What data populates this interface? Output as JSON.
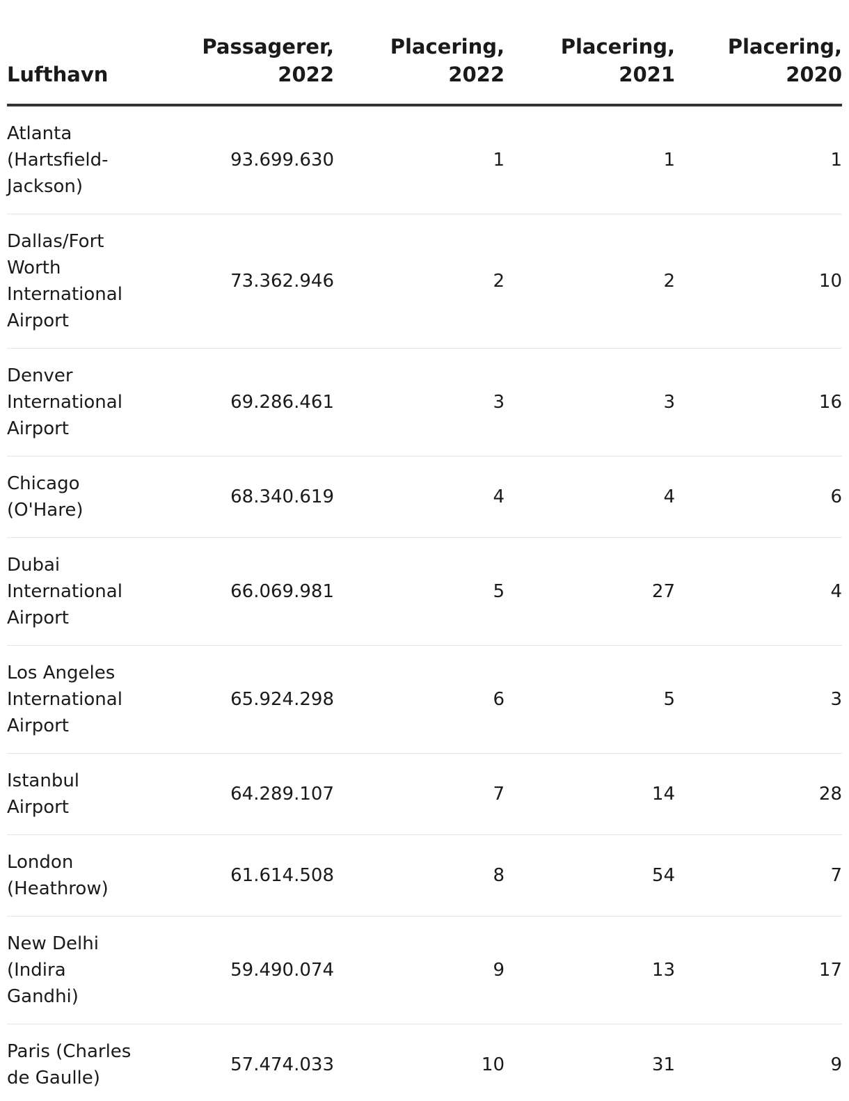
{
  "table": {
    "headers": {
      "airport": "Lufthavn",
      "passengers_2022": [
        "Passagerer,",
        "2022"
      ],
      "rank_2022": [
        "Placering,",
        "2022"
      ],
      "rank_2021": [
        "Placering,",
        "2021"
      ],
      "rank_2020": [
        "Placering,",
        "2020"
      ]
    },
    "rows": [
      {
        "airport": "Atlanta (Hartsfield-Jackson)",
        "passengers_2022": "93.699.630",
        "rank_2022": "1",
        "rank_2021": "1",
        "rank_2020": "1"
      },
      {
        "airport": "Dallas/Fort Worth International Airport",
        "passengers_2022": "73.362.946",
        "rank_2022": "2",
        "rank_2021": "2",
        "rank_2020": "10"
      },
      {
        "airport": "Denver International Airport",
        "passengers_2022": "69.286.461",
        "rank_2022": "3",
        "rank_2021": "3",
        "rank_2020": "16"
      },
      {
        "airport": "Chicago (O'Hare)",
        "passengers_2022": "68.340.619",
        "rank_2022": "4",
        "rank_2021": "4",
        "rank_2020": "6"
      },
      {
        "airport": "Dubai International Airport",
        "passengers_2022": "66.069.981",
        "rank_2022": "5",
        "rank_2021": "27",
        "rank_2020": "4"
      },
      {
        "airport": "Los Angeles International Airport",
        "passengers_2022": "65.924.298",
        "rank_2022": "6",
        "rank_2021": "5",
        "rank_2020": "3"
      },
      {
        "airport": "Istanbul Airport",
        "passengers_2022": "64.289.107",
        "rank_2022": "7",
        "rank_2021": "14",
        "rank_2020": "28"
      },
      {
        "airport": "London (Heathrow)",
        "passengers_2022": "61.614.508",
        "rank_2022": "8",
        "rank_2021": "54",
        "rank_2020": "7"
      },
      {
        "airport": "New Delhi (Indira Gandhi)",
        "passengers_2022": "59.490.074",
        "rank_2022": "9",
        "rank_2021": "13",
        "rank_2020": "17"
      },
      {
        "airport": "Paris (Charles de Gaulle)",
        "passengers_2022": "57.474.033",
        "rank_2022": "10",
        "rank_2021": "31",
        "rank_2020": "9"
      }
    ]
  }
}
